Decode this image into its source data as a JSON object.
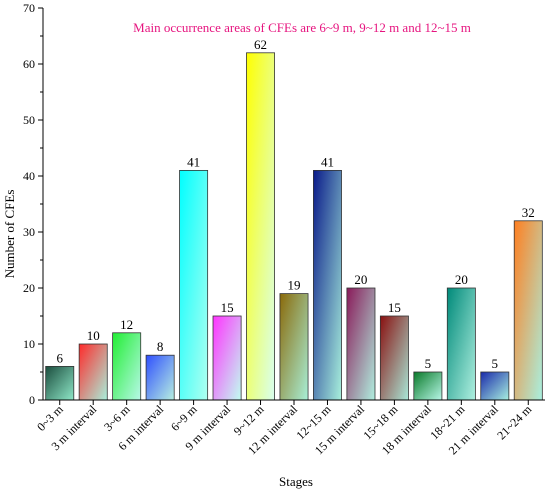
{
  "chart_data": {
    "type": "bar",
    "title": "",
    "annotation": "Main occurrence areas of CFEs are 6~9 m, 9~12 m and 12~15 m",
    "annotation_color": "#e6147f",
    "xlabel": "Stages",
    "ylabel": "Number of CFEs",
    "ylim": [
      0,
      70
    ],
    "yticks": [
      0,
      10,
      20,
      30,
      40,
      50,
      60,
      70
    ],
    "grid": false,
    "categories": [
      "0~3 m",
      "3 m interval",
      "3~6 m",
      "6 m interval",
      "6~9 m",
      "9 m interval",
      "9~12 m",
      "12 m interval",
      "12~15 m",
      "15 m interval",
      "15~18 m",
      "18 m interval",
      "18~21 m",
      "21 m interval",
      "21~24 m"
    ],
    "values": [
      6,
      10,
      12,
      8,
      41,
      15,
      62,
      19,
      41,
      20,
      15,
      5,
      20,
      5,
      32
    ],
    "bar_gradients": [
      [
        "#1b4d3e",
        "#8fe8c8"
      ],
      [
        "#ff2a2a",
        "#a8f0dc"
      ],
      [
        "#22ee33",
        "#b8f8e8"
      ],
      [
        "#2f4fff",
        "#b8f0e0"
      ],
      [
        "#00ffff",
        "#b0fff0"
      ],
      [
        "#ff33ff",
        "#c0fff0"
      ],
      [
        "#ffff00",
        "#d8fff0"
      ],
      [
        "#8a6a0a",
        "#a8f0d8"
      ],
      [
        "#0a1a8a",
        "#a8f0dc"
      ],
      [
        "#8a1a5a",
        "#b0f0e0"
      ],
      [
        "#8a1010",
        "#a8e8d8"
      ],
      [
        "#0a7a2a",
        "#b8f8e8"
      ],
      [
        "#008a7a",
        "#b0f0e0"
      ],
      [
        "#1a2aaa",
        "#a8f0e0"
      ],
      [
        "#ff7f20",
        "#a8f0e0"
      ]
    ]
  }
}
